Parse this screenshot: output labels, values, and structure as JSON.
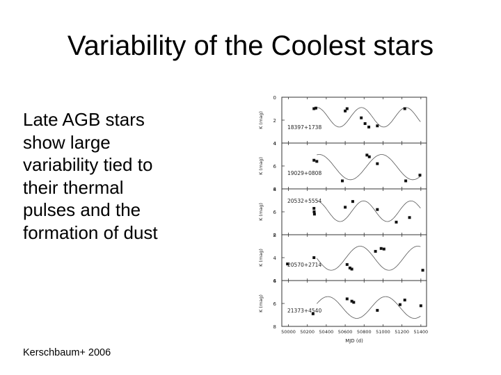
{
  "slide": {
    "title": "Variability of the Coolest stars",
    "bullet_lines": [
      "Late AGB stars",
      "show large",
      "variability tied to",
      "their thermal",
      "pulses and the",
      "formation of dust"
    ],
    "citation": "Kerschbaum+ 2006"
  },
  "chart_data": {
    "type": "scatter",
    "xlabel": "MJD (d)",
    "xlim": [
      49930,
      51460
    ],
    "x_ticks": [
      50000,
      50200,
      50400,
      50600,
      50800,
      51000,
      51200,
      51400
    ],
    "colors": {
      "points": "#111111",
      "curve": "#555555",
      "frame": "#333333"
    },
    "panels": [
      {
        "name": "18397+1738",
        "ylabel": "K (mag)",
        "ylim": [
          0,
          4
        ],
        "y_ticks": [
          0,
          2,
          4
        ],
        "y_tick_labels": [
          "0",
          "2",
          "4"
        ],
        "points": [
          [
            50270,
            1.0
          ],
          [
            50290,
            0.95
          ],
          [
            50600,
            1.2
          ],
          [
            50620,
            1.0
          ],
          [
            50770,
            1.8
          ],
          [
            50810,
            2.3
          ],
          [
            50850,
            2.6
          ],
          [
            50940,
            2.5
          ],
          [
            51230,
            1.0
          ]
        ],
        "fit": {
          "mean": 1.75,
          "amp": 0.85,
          "period": 470,
          "phase": 50420
        }
      },
      {
        "name": "19029+0808",
        "ylabel": "K (mag)",
        "ylim": [
          4,
          8
        ],
        "y_ticks": [
          4,
          6,
          8
        ],
        "y_tick_labels": [
          "4",
          "6",
          "8"
        ],
        "points": [
          [
            50270,
            5.5
          ],
          [
            50300,
            5.6
          ],
          [
            50570,
            7.3
          ],
          [
            50830,
            5.05
          ],
          [
            50855,
            5.2
          ],
          [
            50940,
            5.8
          ],
          [
            51240,
            7.3
          ],
          [
            51390,
            6.8
          ]
        ],
        "fit": {
          "mean": 6.1,
          "amp": 1.1,
          "period": 660,
          "phase": 50490
        }
      },
      {
        "name": "20532+5554",
        "ylabel": "K (mag)",
        "ylim": [
          4,
          8
        ],
        "y_ticks": [
          4,
          6,
          8
        ],
        "y_tick_labels": [
          "4",
          "6",
          "8"
        ],
        "points": [
          [
            50270,
            5.7
          ],
          [
            50272,
            6.0
          ],
          [
            50275,
            6.2
          ],
          [
            50600,
            5.6
          ],
          [
            50680,
            5.1
          ],
          [
            50940,
            5.8
          ],
          [
            51140,
            6.9
          ],
          [
            51280,
            6.5
          ]
        ],
        "fit": {
          "mean": 5.95,
          "amp": 0.9,
          "period": 500,
          "phase": 50420
        }
      },
      {
        "name": "20570+2714",
        "ylabel": "K (mag)",
        "ylim": [
          2,
          6
        ],
        "y_ticks": [
          2,
          4,
          6
        ],
        "y_tick_labels": [
          "2",
          "4",
          "6"
        ],
        "points": [
          [
            49990,
            4.55
          ],
          [
            50270,
            4.0
          ],
          [
            50620,
            4.6
          ],
          [
            50650,
            4.9
          ],
          [
            50670,
            5.0
          ],
          [
            50920,
            3.45
          ],
          [
            50980,
            3.2
          ],
          [
            51010,
            3.25
          ],
          [
            51420,
            5.1
          ]
        ],
        "fit": {
          "mean": 4.05,
          "amp": 1.05,
          "period": 610,
          "phase": 50300
        }
      },
      {
        "name": "21373+4540",
        "ylabel": "K (mag)",
        "ylim": [
          4,
          8
        ],
        "y_ticks": [
          4,
          6,
          8
        ],
        "y_tick_labels": [
          "4",
          "6",
          "8"
        ],
        "points": [
          [
            50260,
            6.9
          ],
          [
            50620,
            5.6
          ],
          [
            50670,
            5.8
          ],
          [
            50690,
            5.9
          ],
          [
            50940,
            6.6
          ],
          [
            51180,
            6.1
          ],
          [
            51230,
            5.7
          ],
          [
            51400,
            6.2
          ]
        ],
        "fit": {
          "mean": 6.35,
          "amp": 0.95,
          "period": 610,
          "phase": 50570
        }
      }
    ]
  }
}
